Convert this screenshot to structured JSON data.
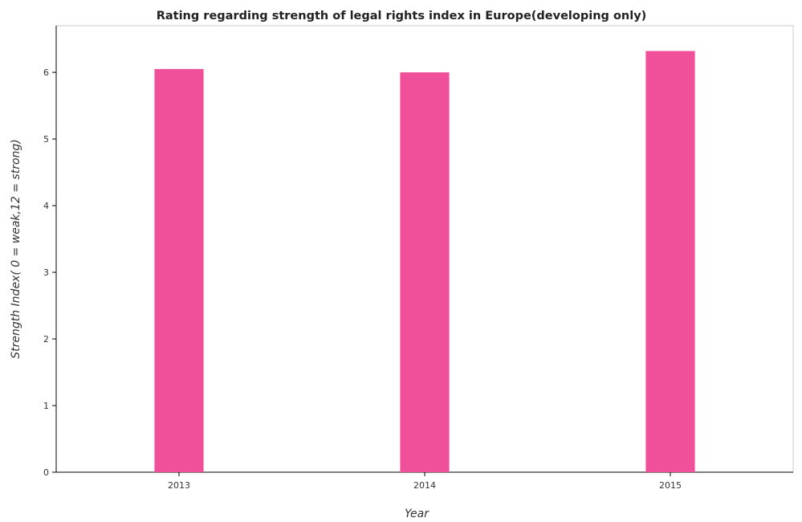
{
  "chart_data": {
    "type": "bar",
    "title": "Rating regarding strength of legal rights index in Europe(developing only)",
    "xlabel": "Year",
    "ylabel": "Strength Index( 0 = weak,12 = strong)",
    "categories": [
      "2013",
      "2014",
      "2015"
    ],
    "values": [
      6.05,
      6.0,
      6.32
    ],
    "ylim": [
      0,
      6.7
    ],
    "yticks": [
      "0",
      "1",
      "2",
      "3",
      "4",
      "5",
      "6"
    ],
    "bar_color": "#f0509a",
    "grid": false,
    "legend": "none"
  }
}
